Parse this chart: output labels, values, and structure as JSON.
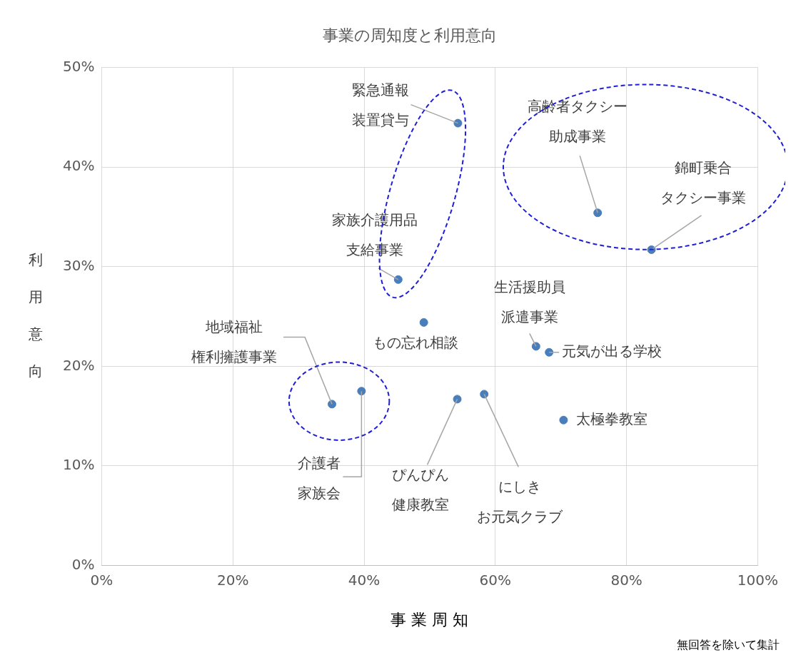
{
  "chart_data": {
    "type": "scatter",
    "title": "事業の周知度と利用意向",
    "xlabel": "事業周知",
    "ylabel": "利用意向",
    "x": [
      54.3,
      75.6,
      83.8,
      45.2,
      49.1,
      66.2,
      68.2,
      35.1,
      39.6,
      54.2,
      58.3,
      70.4
    ],
    "values": [
      44.4,
      35.4,
      31.7,
      28.7,
      24.4,
      22.0,
      21.4,
      16.2,
      17.5,
      16.7,
      17.2,
      14.6
    ],
    "color": "#4a7ebb",
    "marker": "circle",
    "legend": false,
    "grid": true,
    "xlim": [
      0,
      100
    ],
    "xticks": [
      {
        "value": 0,
        "label": "0%"
      },
      {
        "value": 20,
        "label": "20%"
      },
      {
        "value": 40,
        "label": "40%"
      },
      {
        "value": 60,
        "label": "60%"
      },
      {
        "value": 80,
        "label": "80%"
      },
      {
        "value": 100,
        "label": "100%"
      }
    ],
    "ylim": [
      0,
      50
    ],
    "yticks": [
      {
        "value": 0,
        "label": "0%"
      },
      {
        "value": 10,
        "label": "10%"
      },
      {
        "value": 20,
        "label": "20%"
      },
      {
        "value": 30,
        "label": "30%"
      },
      {
        "value": 40,
        "label": "40%"
      },
      {
        "value": 50,
        "label": "50%"
      }
    ],
    "annotations": [
      {
        "text": "緊急通報装置貸与",
        "x": 54.3,
        "y": 44.4
      },
      {
        "text": "高齢者タクシー助成事業",
        "x": 75.6,
        "y": 35.4
      },
      {
        "text": "錦町乗合タクシー事業",
        "x": 83.8,
        "y": 31.7
      },
      {
        "text": "家族介護用品支給事業",
        "x": 45.2,
        "y": 28.7
      },
      {
        "text": "もの忘れ相談",
        "x": 49.1,
        "y": 24.4
      },
      {
        "text": "生活援助員派遣事業",
        "x": 66.2,
        "y": 22.0
      },
      {
        "text": "元気が出る学校",
        "x": 68.2,
        "y": 21.4
      },
      {
        "text": "地域福祉権利擁護事業",
        "x": 35.1,
        "y": 16.2
      },
      {
        "text": "介護者家族会",
        "x": 39.6,
        "y": 17.5
      },
      {
        "text": "ぴんぴん健康教室",
        "x": 54.2,
        "y": 16.7
      },
      {
        "text": "にしきお元気クラブ",
        "x": 58.3,
        "y": 17.2
      },
      {
        "text": "太極拳教室",
        "x": 70.4,
        "y": 14.6
      },
      "無回答を除いて集計"
    ]
  }
}
